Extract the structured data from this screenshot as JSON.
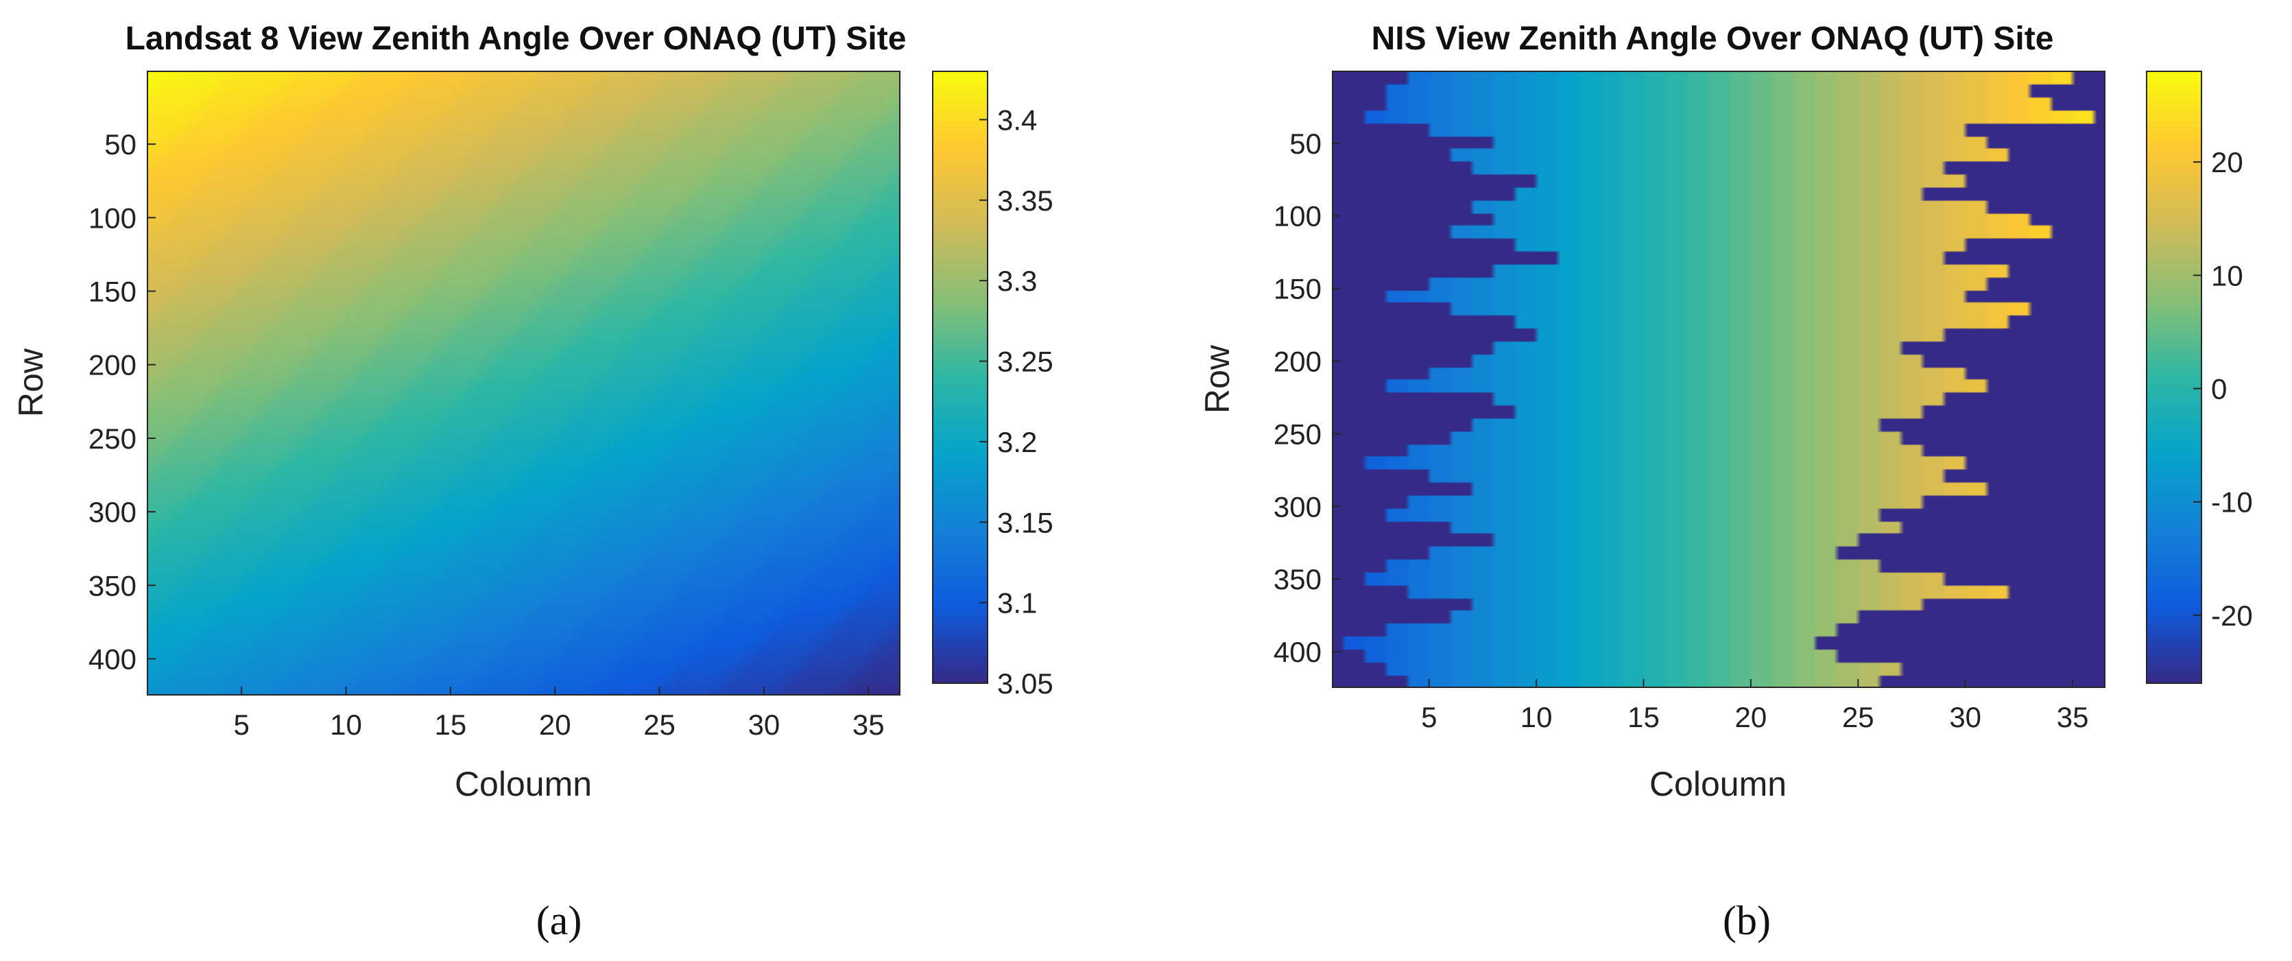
{
  "chart_data": [
    {
      "type": "heatmap",
      "panel_label": "(a)",
      "title": "Landsat 8 View Zenith Angle Over ONAQ (UT) Site",
      "xlabel": "Coloumn",
      "ylabel": "Row",
      "xlim": [
        0.5,
        36.5
      ],
      "ylim": [
        0.5,
        424.5
      ],
      "x_ticks": [
        5,
        10,
        15,
        20,
        25,
        30,
        35
      ],
      "y_ticks": [
        50,
        100,
        150,
        200,
        250,
        300,
        350,
        400
      ],
      "y_reversed": true,
      "colorbar": {
        "min": 3.05,
        "max": 3.43,
        "ticks": [
          3.05,
          3.1,
          3.15,
          3.2,
          3.25,
          3.3,
          3.35,
          3.4
        ],
        "tick_labels": [
          "3.05",
          "3.1",
          "3.15",
          "3.2",
          "3.25",
          "3.3",
          "3.35",
          "3.4"
        ]
      },
      "field": {
        "description": "smooth gradient",
        "corner_values": {
          "top_left": 3.43,
          "top_right": 3.3,
          "bottom_left": 3.17,
          "bottom_right": 3.05
        }
      },
      "colormap": [
        "#352a87",
        "#0f5cdd",
        "#1481d6",
        "#06a4ca",
        "#2eb7a4",
        "#87bf77",
        "#d1bb59",
        "#fec832",
        "#f9fb0e"
      ]
    },
    {
      "type": "heatmap",
      "panel_label": "(b)",
      "title": "NIS View Zenith Angle Over ONAQ (UT) Site",
      "xlabel": "Coloumn",
      "ylabel": "Row",
      "xlim": [
        0.5,
        36.5
      ],
      "ylim": [
        0.5,
        424.5
      ],
      "x_ticks": [
        5,
        10,
        15,
        20,
        25,
        30,
        35
      ],
      "y_ticks": [
        50,
        100,
        150,
        200,
        250,
        300,
        350,
        400
      ],
      "y_reversed": true,
      "colorbar": {
        "min": -26,
        "max": 28,
        "ticks": [
          -20,
          -10,
          0,
          10,
          20
        ],
        "tick_labels": [
          "-20",
          "-10",
          "0",
          "10",
          "20"
        ]
      },
      "field": {
        "description": "column-wise gradient with invalid (minimum) fill outside swath",
        "value_at_column_1": -19,
        "value_at_column_36": 26,
        "fill_value": -26,
        "left_edge_columns": [
          4,
          3,
          3,
          2,
          5,
          8,
          6,
          7,
          10,
          9,
          7,
          8,
          6,
          9,
          11,
          8,
          5,
          3,
          6,
          9,
          10,
          8,
          7,
          5,
          3,
          8,
          9,
          7,
          6,
          4,
          2,
          5,
          7,
          4,
          3,
          6,
          8,
          5,
          3,
          2,
          4,
          7,
          6,
          3,
          1,
          2,
          3,
          4
        ],
        "right_edge_columns": [
          35,
          33,
          34,
          36,
          30,
          31,
          32,
          29,
          30,
          28,
          31,
          33,
          34,
          30,
          29,
          32,
          31,
          30,
          33,
          32,
          29,
          27,
          28,
          30,
          31,
          29,
          28,
          26,
          27,
          28,
          30,
          29,
          31,
          28,
          26,
          27,
          25,
          24,
          26,
          29,
          32,
          28,
          25,
          24,
          23,
          24,
          27,
          26
        ]
      },
      "colormap": [
        "#352a87",
        "#0f5cdd",
        "#1481d6",
        "#06a4ca",
        "#2eb7a4",
        "#87bf77",
        "#d1bb59",
        "#fec832",
        "#f9fb0e"
      ]
    }
  ]
}
